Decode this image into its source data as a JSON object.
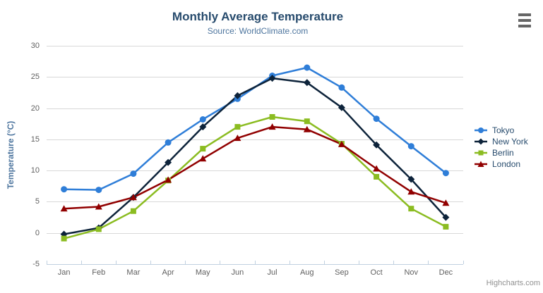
{
  "chart_data": {
    "type": "line",
    "title": "Monthly Average Temperature",
    "subtitle": "Source: WorldClimate.com",
    "ylabel": "Temperature (°C)",
    "xlabel": "",
    "categories": [
      "Jan",
      "Feb",
      "Mar",
      "Apr",
      "May",
      "Jun",
      "Jul",
      "Aug",
      "Sep",
      "Oct",
      "Nov",
      "Dec"
    ],
    "yticks": [
      -5,
      0,
      5,
      10,
      15,
      20,
      25,
      30
    ],
    "ylim": [
      -5,
      30
    ],
    "grid": true,
    "legend_position": "right",
    "series": [
      {
        "name": "Tokyo",
        "color": "#2f7ed8",
        "marker": "circle",
        "values": [
          7.0,
          6.9,
          9.5,
          14.5,
          18.2,
          21.5,
          25.2,
          26.5,
          23.3,
          18.3,
          13.9,
          9.6
        ]
      },
      {
        "name": "New York",
        "color": "#0d233a",
        "marker": "diamond",
        "values": [
          -0.2,
          0.8,
          5.7,
          11.3,
          17.0,
          22.0,
          24.8,
          24.1,
          20.1,
          14.1,
          8.6,
          2.5
        ]
      },
      {
        "name": "Berlin",
        "color": "#8bbc21",
        "marker": "square",
        "values": [
          -0.9,
          0.6,
          3.5,
          8.4,
          13.5,
          17.0,
          18.6,
          17.9,
          14.3,
          9.0,
          3.9,
          1.0
        ]
      },
      {
        "name": "London",
        "color": "#910000",
        "marker": "triangle",
        "values": [
          3.9,
          4.2,
          5.7,
          8.5,
          11.9,
          15.2,
          17.0,
          16.6,
          14.2,
          10.3,
          6.6,
          4.8
        ]
      }
    ]
  },
  "credits": {
    "label": "Highcharts.com"
  },
  "export_menu": {
    "icon": "hamburger-menu-icon"
  },
  "colors": {
    "title": "#274b6d",
    "subtitle": "#4d759e",
    "axis_label": "#606060",
    "axis_line": "#c0d0e0",
    "gridline": "#d8d8d8",
    "legend_text": "#274b6d",
    "credits": "#909090",
    "menu_icon": "#666666"
  }
}
